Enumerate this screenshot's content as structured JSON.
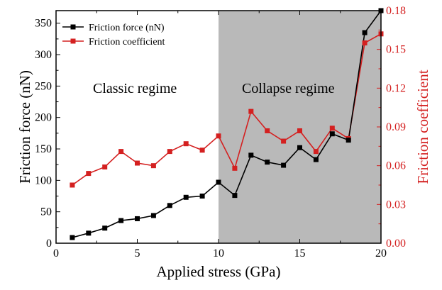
{
  "chart_data": {
    "type": "line",
    "x": [
      1,
      2,
      3,
      4,
      5,
      6,
      7,
      8,
      9,
      10,
      11,
      12,
      13,
      14,
      15,
      16,
      17,
      18,
      19,
      20
    ],
    "series": [
      {
        "name": "Friction force (nN)",
        "axis": "left",
        "color": "#000000",
        "values": [
          9,
          16,
          24,
          36,
          39,
          44,
          60,
          73,
          75,
          97,
          76,
          140,
          129,
          124,
          152,
          133,
          174,
          164,
          335,
          370
        ]
      },
      {
        "name": "Friction coefficient",
        "axis": "right",
        "color": "#d42020",
        "values": [
          0.045,
          0.054,
          0.059,
          0.071,
          0.062,
          0.06,
          0.071,
          0.077,
          0.072,
          0.083,
          0.058,
          0.102,
          0.087,
          0.079,
          0.087,
          0.071,
          0.089,
          0.081,
          0.155,
          0.162
        ]
      }
    ],
    "xlabel": "Applied stress (GPa)",
    "ylabel": "Friction force (nN)",
    "y2label": "Friction coefficient",
    "xlim": [
      0,
      20
    ],
    "ylim": [
      0,
      370
    ],
    "y2lim": [
      0,
      0.18
    ],
    "xticks": [
      0,
      5,
      10,
      15,
      20
    ],
    "yticks": [
      0,
      50,
      100,
      150,
      200,
      250,
      300,
      350
    ],
    "y2ticks": [
      "0.00",
      "0.03",
      "0.06",
      "0.09",
      "0.12",
      "0.15",
      "0.18"
    ],
    "y2tick_values": [
      0,
      0.03,
      0.06,
      0.09,
      0.12,
      0.15,
      0.18
    ],
    "shaded_region": {
      "x_from": 10,
      "x_to": 20,
      "color": "#b9b9b9"
    },
    "annotations": [
      {
        "text": "Classic regime",
        "x": 5,
        "y": 240
      },
      {
        "text": "Collapse regime",
        "x": 15,
        "y": 240
      }
    ],
    "legend": {
      "position": "top-right-of-left-half"
    },
    "grid": false
  }
}
